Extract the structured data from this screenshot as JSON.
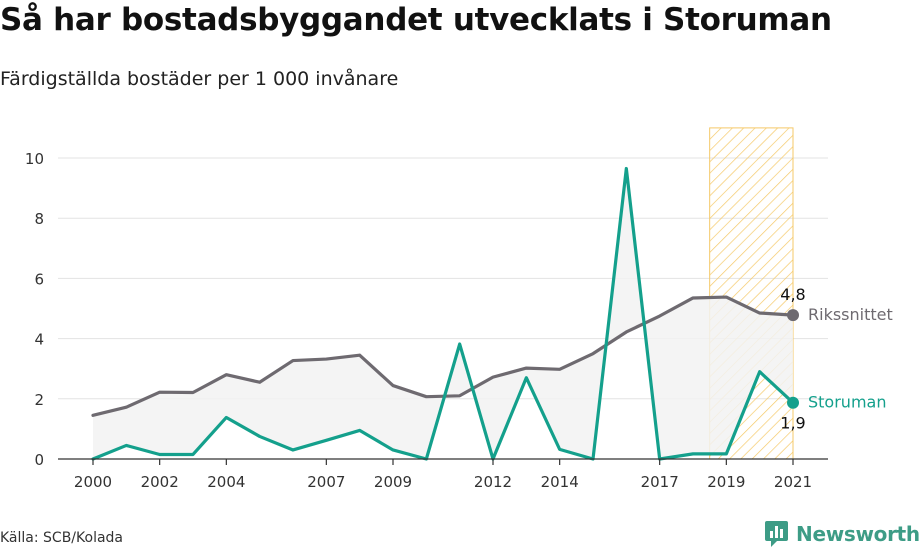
{
  "title": "Så har bostadsbyggandet utvecklats i Storuman",
  "subtitle": "Färdigställda bostäder per 1 000 invånare",
  "source": "Källa: SCB/Kolada",
  "brand": {
    "name": "Newsworthy",
    "icon": "newsworthy-logo-icon",
    "color": "#3d9c86"
  },
  "chart_data": {
    "type": "line",
    "x": [
      2000,
      2001,
      2002,
      2003,
      2004,
      2005,
      2006,
      2007,
      2008,
      2009,
      2010,
      2011,
      2012,
      2013,
      2014,
      2015,
      2016,
      2017,
      2018,
      2019,
      2020,
      2021
    ],
    "x_tick_labels": [
      "2000",
      "2002",
      "2004",
      "2007",
      "2009",
      "2012",
      "2014",
      "2017",
      "2019",
      "2021"
    ],
    "y_tick_labels": [
      "0",
      "2",
      "4",
      "6",
      "8",
      "10"
    ],
    "ylim": [
      0,
      11
    ],
    "grid": true,
    "highlight_range": [
      2018.5,
      2021
    ],
    "colors": {
      "riket": "#6e6a70",
      "storuman": "#14a08c",
      "highlight": "#f5c969",
      "fill": "#f2f2f2"
    },
    "series": [
      {
        "key": "riket",
        "name": "Rikssnittet",
        "values": [
          1.45,
          1.72,
          2.22,
          2.21,
          2.8,
          2.55,
          3.27,
          3.32,
          3.45,
          2.44,
          2.07,
          2.1,
          2.72,
          3.02,
          2.98,
          3.5,
          4.22,
          4.75,
          5.35,
          5.38,
          4.85,
          4.78
        ],
        "end_label": "4,8"
      },
      {
        "key": "storuman",
        "name": "Storuman",
        "values": [
          0.0,
          0.45,
          0.15,
          0.15,
          1.38,
          0.75,
          0.3,
          0.62,
          0.95,
          0.3,
          0.0,
          3.82,
          0.0,
          2.7,
          0.32,
          0.0,
          9.65,
          0.0,
          0.17,
          0.17,
          2.9,
          1.87
        ],
        "end_label": "1,9"
      }
    ]
  }
}
